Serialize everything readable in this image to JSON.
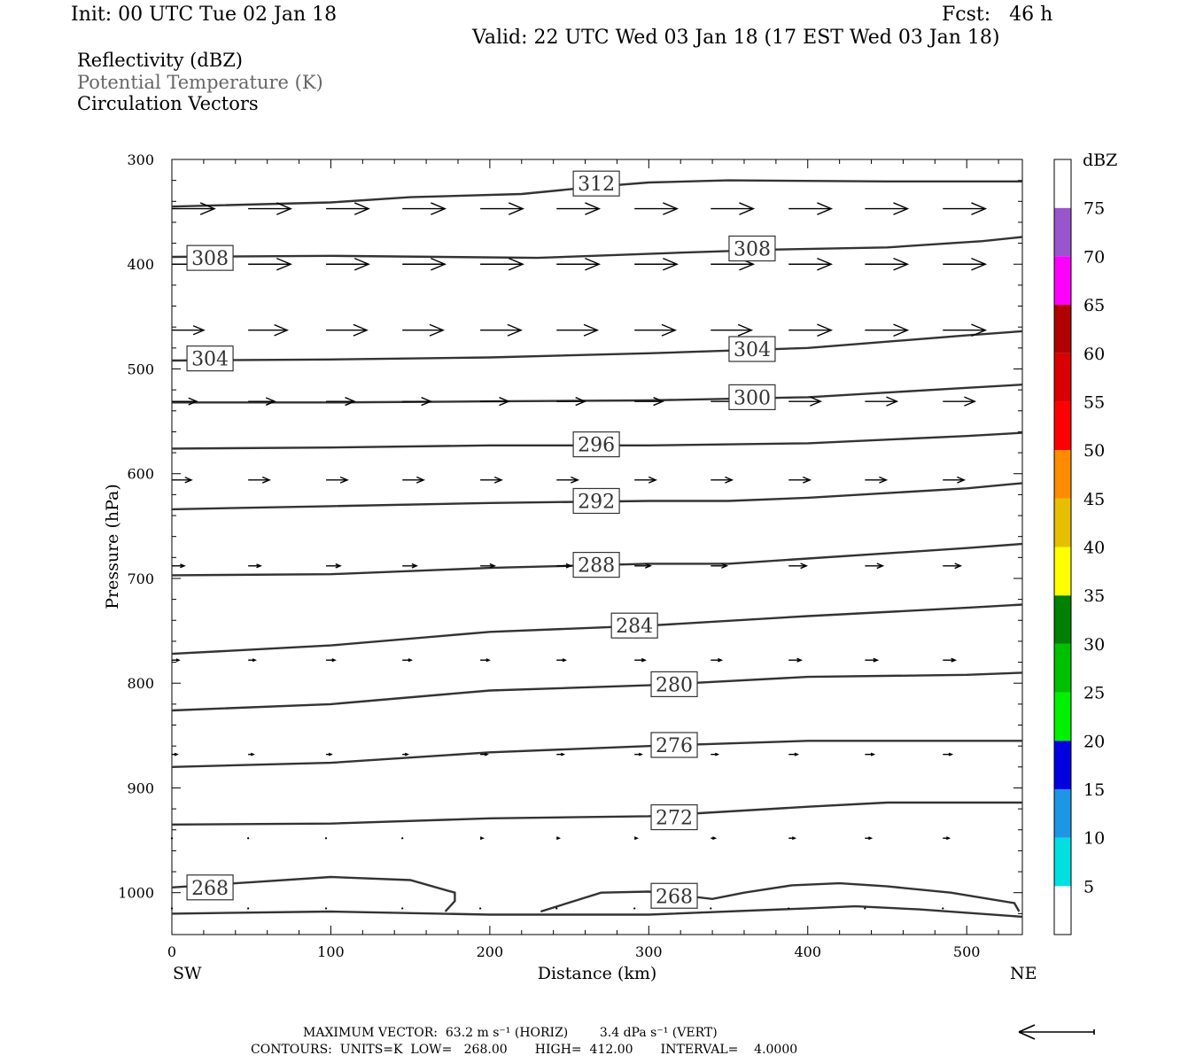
{
  "header": {
    "init": "Init: 00 UTC Tue 02 Jan 18",
    "fcst": "Fcst:   46 h",
    "valid": "Valid: 22 UTC Wed 03 Jan 18 (17 EST Wed 03 Jan 18)"
  },
  "legend_lines": {
    "reflectivity": "Reflectivity (dBZ)",
    "theta": "Potential Temperature (K)",
    "vectors": "Circulation Vectors"
  },
  "footer": {
    "max_vector": "MAXIMUM VECTOR:  63.2 m s⁻¹ (HORIZ)        3.4 dPa s⁻¹ (VERT)",
    "contours": "CONTOURS:  UNITS=K  LOW=   268.00       HIGH=  412.00       INTERVAL=    4.0000"
  },
  "colors": {
    "contour": "#333333",
    "theta_legend": "#666666"
  },
  "chart_data": {
    "type": "line",
    "xlabel": "Distance (km)",
    "ylabel": "Pressure (hPa)",
    "xlim": [
      0,
      535
    ],
    "ylim": [
      1040,
      300
    ],
    "xticks": [
      "0",
      "100",
      "200",
      "300",
      "400",
      "500"
    ],
    "yticks": [
      "300",
      "400",
      "500",
      "600",
      "700",
      "800",
      "900",
      "1000"
    ],
    "x_end_labels": {
      "left": "SW",
      "right": "NE"
    },
    "colorbar": {
      "title": "dBZ",
      "labels": [
        "5",
        "10",
        "15",
        "20",
        "25",
        "30",
        "35",
        "40",
        "45",
        "50",
        "55",
        "60",
        "65",
        "70",
        "75"
      ],
      "colors": [
        "#ffffff",
        "#00e0e0",
        "#1e96e6",
        "#0000e0",
        "#00f000",
        "#00c000",
        "#008000",
        "#ffff00",
        "#e6c000",
        "#ff8c00",
        "#ff0000",
        "#d80000",
        "#b00000",
        "#ff00ff",
        "#9955cc",
        "#ffffff"
      ]
    },
    "theta_contours": [
      {
        "level": "312",
        "label_x": 267,
        "label_p": 323,
        "points": [
          [
            0,
            345
          ],
          [
            100,
            341
          ],
          [
            150,
            336
          ],
          [
            220,
            333
          ],
          [
            240,
            330
          ],
          [
            267,
            326
          ],
          [
            300,
            322
          ],
          [
            350,
            320
          ],
          [
            450,
            321
          ],
          [
            535,
            321
          ]
        ]
      },
      {
        "level": "308",
        "label_x": 365,
        "label_p": 385,
        "label2_x": 24,
        "label2_p": 394,
        "points": [
          [
            0,
            393
          ],
          [
            100,
            392
          ],
          [
            230,
            394
          ],
          [
            320,
            389
          ],
          [
            380,
            386
          ],
          [
            450,
            384
          ],
          [
            510,
            378
          ],
          [
            535,
            374
          ]
        ]
      },
      {
        "level": "304",
        "label_x": 365,
        "label_p": 481,
        "label2_x": 24,
        "label2_p": 490,
        "points": [
          [
            0,
            492
          ],
          [
            100,
            491
          ],
          [
            200,
            489
          ],
          [
            300,
            485
          ],
          [
            400,
            480
          ],
          [
            500,
            468
          ],
          [
            535,
            464
          ]
        ]
      },
      {
        "level": "300",
        "label_x": 365,
        "label_p": 527,
        "points": [
          [
            0,
            532
          ],
          [
            100,
            532
          ],
          [
            200,
            531
          ],
          [
            300,
            530
          ],
          [
            400,
            527
          ],
          [
            500,
            518
          ],
          [
            535,
            515
          ]
        ]
      },
      {
        "level": "296",
        "label_x": 267,
        "label_p": 572,
        "points": [
          [
            0,
            576
          ],
          [
            100,
            575
          ],
          [
            200,
            573
          ],
          [
            300,
            573
          ],
          [
            400,
            571
          ],
          [
            500,
            564
          ],
          [
            535,
            561
          ]
        ]
      },
      {
        "level": "292",
        "label_x": 267,
        "label_p": 626,
        "points": [
          [
            0,
            634
          ],
          [
            100,
            631
          ],
          [
            200,
            628
          ],
          [
            300,
            626
          ],
          [
            350,
            626
          ],
          [
            400,
            623
          ],
          [
            500,
            614
          ],
          [
            535,
            609
          ]
        ]
      },
      {
        "level": "288",
        "label_x": 267,
        "label_p": 687,
        "points": [
          [
            0,
            697
          ],
          [
            100,
            696
          ],
          [
            200,
            690
          ],
          [
            300,
            686
          ],
          [
            350,
            686
          ],
          [
            400,
            681
          ],
          [
            500,
            671
          ],
          [
            535,
            667
          ]
        ]
      },
      {
        "level": "284",
        "label_x": 291,
        "label_p": 745,
        "points": [
          [
            0,
            772
          ],
          [
            100,
            764
          ],
          [
            200,
            751
          ],
          [
            300,
            745
          ],
          [
            400,
            736
          ],
          [
            500,
            728
          ],
          [
            535,
            725
          ]
        ]
      },
      {
        "level": "280",
        "label_x": 316,
        "label_p": 801,
        "points": [
          [
            0,
            826
          ],
          [
            100,
            820
          ],
          [
            200,
            807
          ],
          [
            300,
            802
          ],
          [
            400,
            794
          ],
          [
            500,
            792
          ],
          [
            535,
            790
          ]
        ]
      },
      {
        "level": "276",
        "label_x": 316,
        "label_p": 859,
        "points": [
          [
            0,
            880
          ],
          [
            100,
            876
          ],
          [
            200,
            866
          ],
          [
            300,
            860
          ],
          [
            400,
            855
          ],
          [
            500,
            855
          ],
          [
            535,
            855
          ]
        ]
      },
      {
        "level": "272",
        "label_x": 316,
        "label_p": 928,
        "points": [
          [
            0,
            935
          ],
          [
            100,
            934
          ],
          [
            200,
            929
          ],
          [
            300,
            927
          ],
          [
            400,
            918
          ],
          [
            450,
            914
          ],
          [
            535,
            914
          ]
        ]
      },
      {
        "level": "268",
        "label_x": 24,
        "label_p": 995,
        "label2_x": 316,
        "label2_p": 1003,
        "points": [
          [
            0,
            995
          ],
          [
            50,
            990
          ],
          [
            100,
            985
          ],
          [
            150,
            988
          ],
          [
            178,
            1000
          ],
          [
            178,
            1008
          ],
          [
            172,
            1018
          ]
        ]
      },
      {
        "level": "268",
        "points": [
          [
            232,
            1018
          ],
          [
            270,
            1000
          ],
          [
            300,
            999
          ],
          [
            340,
            1006
          ],
          [
            360,
            1000
          ],
          [
            390,
            993
          ],
          [
            420,
            991
          ],
          [
            450,
            994
          ],
          [
            490,
            1000
          ],
          [
            530,
            1010
          ],
          [
            533,
            1018
          ]
        ]
      },
      {
        "level": "268",
        "points": [
          [
            0,
            1020
          ],
          [
            100,
            1018
          ],
          [
            200,
            1021
          ],
          [
            300,
            1021
          ],
          [
            400,
            1015
          ],
          [
            430,
            1013
          ],
          [
            470,
            1016
          ],
          [
            535,
            1023
          ]
        ]
      }
    ],
    "vector_rows": [
      {
        "p": 347,
        "lengths": [
          48,
          48,
          48,
          48,
          48,
          48,
          48,
          48,
          48,
          48,
          48
        ]
      },
      {
        "p": 400,
        "lengths": [
          48,
          48,
          48,
          48,
          48,
          48,
          48,
          48,
          48,
          48,
          48
        ]
      },
      {
        "p": 463,
        "lengths": [
          36,
          44,
          46,
          46,
          46,
          46,
          46,
          46,
          48,
          48,
          48
        ]
      },
      {
        "p": 531,
        "lengths": [
          28,
          30,
          32,
          32,
          32,
          32,
          32,
          34,
          36,
          36,
          36
        ]
      },
      {
        "p": 606,
        "lengths": [
          22,
          24,
          24,
          24,
          24,
          24,
          24,
          24,
          24,
          24,
          24
        ]
      },
      {
        "p": 688,
        "lengths": [
          14,
          14,
          16,
          16,
          16,
          16,
          18,
          18,
          20,
          20,
          20
        ]
      },
      {
        "p": 778,
        "lengths": [
          8,
          8,
          10,
          10,
          10,
          10,
          12,
          12,
          14,
          14,
          14
        ]
      },
      {
        "p": 868,
        "lengths": [
          6,
          6,
          6,
          6,
          8,
          8,
          8,
          8,
          10,
          10,
          10
        ]
      },
      {
        "p": 948,
        "lengths": [
          1,
          1,
          1,
          1,
          3,
          3,
          3,
          5,
          7,
          7,
          7
        ]
      },
      {
        "p": 1015,
        "lengths": [
          1,
          1,
          1,
          1,
          1,
          1,
          1,
          1,
          1,
          1,
          1
        ]
      }
    ],
    "vector_xs": [
      0,
      48,
      97,
      145,
      194,
      242,
      291,
      339,
      388,
      436,
      485
    ]
  }
}
